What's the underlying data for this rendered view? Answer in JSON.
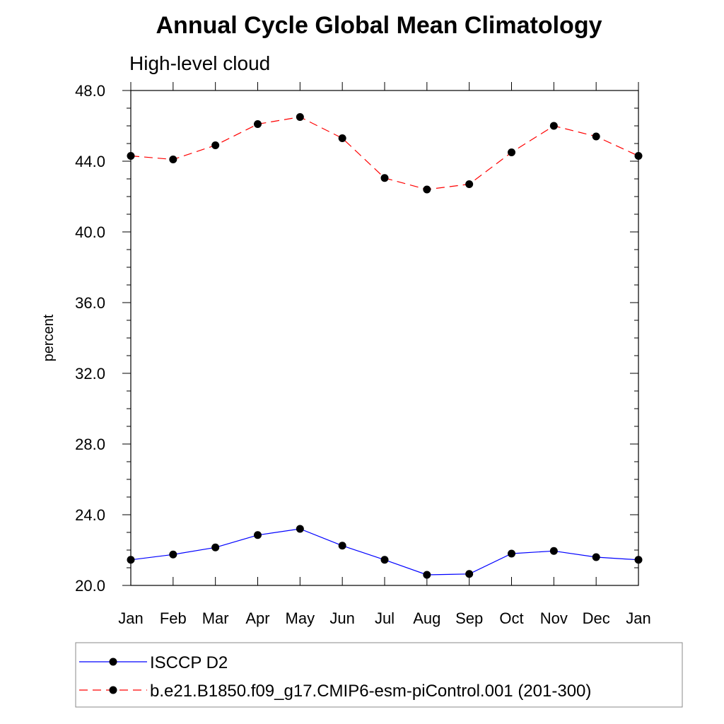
{
  "chart_data": {
    "type": "line",
    "title": "Annual Cycle Global Mean Climatology",
    "subtitle": "High-level cloud",
    "xlabel": "",
    "ylabel": "percent",
    "categories": [
      "Jan",
      "Feb",
      "Mar",
      "Apr",
      "May",
      "Jun",
      "Jul",
      "Aug",
      "Sep",
      "Oct",
      "Nov",
      "Dec",
      "Jan"
    ],
    "ylim": [
      20.0,
      48.0
    ],
    "yticks": [
      "20.0",
      "24.0",
      "28.0",
      "32.0",
      "36.0",
      "40.0",
      "44.0",
      "48.0"
    ],
    "series": [
      {
        "name": "ISCCP D2",
        "color": "#0000ff",
        "dash": "solid",
        "values": [
          21.45,
          21.75,
          22.15,
          22.85,
          23.2,
          22.25,
          21.45,
          20.6,
          20.65,
          21.8,
          21.95,
          21.6,
          21.45
        ]
      },
      {
        "name": "b.e21.B1850.f09_g17.CMIP6-esm-piControl.001 (201-300)",
        "color": "#ff0000",
        "dash": "dashed",
        "values": [
          44.3,
          44.1,
          44.9,
          46.1,
          46.5,
          45.3,
          43.05,
          42.4,
          42.7,
          44.5,
          46.0,
          45.4,
          44.3
        ]
      }
    ]
  }
}
